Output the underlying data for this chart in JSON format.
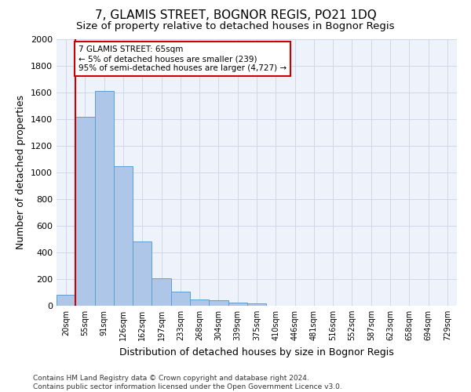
{
  "title1": "7, GLAMIS STREET, BOGNOR REGIS, PO21 1DQ",
  "title2": "Size of property relative to detached houses in Bognor Regis",
  "xlabel": "Distribution of detached houses by size in Bognor Regis",
  "ylabel": "Number of detached properties",
  "footer1": "Contains HM Land Registry data © Crown copyright and database right 2024.",
  "footer2": "Contains public sector information licensed under the Open Government Licence v3.0.",
  "bin_labels": [
    "20sqm",
    "55sqm",
    "91sqm",
    "126sqm",
    "162sqm",
    "197sqm",
    "233sqm",
    "268sqm",
    "304sqm",
    "339sqm",
    "375sqm",
    "410sqm",
    "446sqm",
    "481sqm",
    "516sqm",
    "552sqm",
    "587sqm",
    "623sqm",
    "658sqm",
    "694sqm",
    "729sqm"
  ],
  "bar_values": [
    80,
    1420,
    1610,
    1050,
    480,
    205,
    105,
    50,
    40,
    25,
    20,
    0,
    0,
    0,
    0,
    0,
    0,
    0,
    0,
    0,
    0
  ],
  "bar_color": "#aec6e8",
  "bar_edge_color": "#5a9fd4",
  "vline_x_idx": 1,
  "annotation_text": "7 GLAMIS STREET: 65sqm\n← 5% of detached houses are smaller (239)\n95% of semi-detached houses are larger (4,727) →",
  "annotation_box_color": "#ffffff",
  "annotation_box_edge_color": "#cc0000",
  "vline_color": "#cc0000",
  "ylim": [
    0,
    2000
  ],
  "yticks": [
    0,
    200,
    400,
    600,
    800,
    1000,
    1200,
    1400,
    1600,
    1800,
    2000
  ],
  "grid_color": "#d0d8e8",
  "background_color": "#eef2fb",
  "title1_fontsize": 11,
  "title2_fontsize": 9.5,
  "xlabel_fontsize": 9,
  "ylabel_fontsize": 9,
  "footer_fontsize": 6.5
}
